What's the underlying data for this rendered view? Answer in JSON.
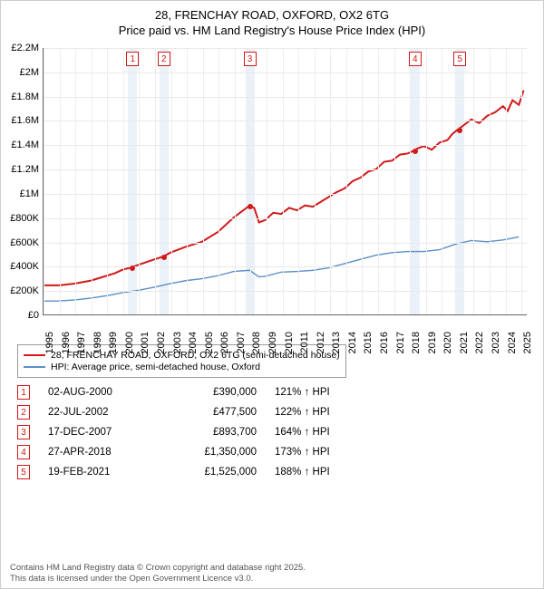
{
  "header": {
    "line1": "28, FRENCHAY ROAD, OXFORD, OX2 6TG",
    "line2": "Price paid vs. HM Land Registry's House Price Index (HPI)"
  },
  "chart": {
    "type": "line",
    "background_color": "#ffffff",
    "grid_color": "#e9e9e9",
    "x_years": [
      1995,
      1996,
      1997,
      1998,
      1999,
      2000,
      2001,
      2002,
      2003,
      2004,
      2005,
      2006,
      2007,
      2008,
      2009,
      2010,
      2011,
      2012,
      2013,
      2014,
      2015,
      2016,
      2017,
      2018,
      2019,
      2020,
      2021,
      2022,
      2023,
      2024,
      2025
    ],
    "xlim": [
      1995,
      2025.5
    ],
    "ylim": [
      0,
      2200000
    ],
    "yticks": [
      0,
      200000,
      400000,
      600000,
      800000,
      1000000,
      1200000,
      1400000,
      1600000,
      1800000,
      2000000,
      2200000
    ],
    "ytick_labels": [
      "£0",
      "£200K",
      "£400K",
      "£600K",
      "£800K",
      "£1M",
      "£1.2M",
      "£1.4M",
      "£1.6M",
      "£1.8M",
      "£2M",
      "£2.2M"
    ],
    "series": [
      {
        "name": "property",
        "label": "28, FRENCHAY ROAD, OXFORD, OX2 6TG (semi-detached house)",
        "color": "#d21919",
        "width": 2,
        "points": [
          [
            1995,
            240000
          ],
          [
            1996,
            240000
          ],
          [
            1997,
            255000
          ],
          [
            1998,
            280000
          ],
          [
            1999,
            320000
          ],
          [
            1999.5,
            340000
          ],
          [
            2000,
            370000
          ],
          [
            2000.6,
            390000
          ],
          [
            2001,
            410000
          ],
          [
            2002,
            455000
          ],
          [
            2002.55,
            477500
          ],
          [
            2003,
            510000
          ],
          [
            2004,
            560000
          ],
          [
            2005,
            600000
          ],
          [
            2006,
            680000
          ],
          [
            2007,
            800000
          ],
          [
            2007.95,
            893700
          ],
          [
            2008.3,
            880000
          ],
          [
            2008.6,
            760000
          ],
          [
            2009,
            780000
          ],
          [
            2009.5,
            840000
          ],
          [
            2010,
            830000
          ],
          [
            2010.5,
            880000
          ],
          [
            2011,
            860000
          ],
          [
            2011.5,
            900000
          ],
          [
            2012,
            890000
          ],
          [
            2012.5,
            930000
          ],
          [
            2013,
            970000
          ],
          [
            2013.5,
            1010000
          ],
          [
            2014,
            1040000
          ],
          [
            2014.5,
            1100000
          ],
          [
            2015,
            1130000
          ],
          [
            2015.5,
            1180000
          ],
          [
            2016,
            1200000
          ],
          [
            2016.5,
            1260000
          ],
          [
            2017,
            1270000
          ],
          [
            2017.5,
            1320000
          ],
          [
            2018,
            1330000
          ],
          [
            2018.32,
            1350000
          ],
          [
            2018.6,
            1370000
          ],
          [
            2019,
            1390000
          ],
          [
            2019.5,
            1360000
          ],
          [
            2020,
            1420000
          ],
          [
            2020.5,
            1440000
          ],
          [
            2020.8,
            1490000
          ],
          [
            2021.13,
            1525000
          ],
          [
            2021.5,
            1560000
          ],
          [
            2022,
            1610000
          ],
          [
            2022.5,
            1580000
          ],
          [
            2023,
            1640000
          ],
          [
            2023.5,
            1670000
          ],
          [
            2024,
            1720000
          ],
          [
            2024.3,
            1680000
          ],
          [
            2024.6,
            1770000
          ],
          [
            2025,
            1730000
          ],
          [
            2025.3,
            1850000
          ]
        ]
      },
      {
        "name": "hpi",
        "label": "HPI: Average price, semi-detached house, Oxford",
        "color": "#5b8fc7",
        "width": 1.4,
        "points": [
          [
            1995,
            110000
          ],
          [
            1996,
            112000
          ],
          [
            1997,
            120000
          ],
          [
            1998,
            135000
          ],
          [
            1999,
            155000
          ],
          [
            2000,
            180000
          ],
          [
            2001,
            200000
          ],
          [
            2002,
            225000
          ],
          [
            2003,
            255000
          ],
          [
            2004,
            280000
          ],
          [
            2005,
            295000
          ],
          [
            2006,
            320000
          ],
          [
            2007,
            355000
          ],
          [
            2008,
            365000
          ],
          [
            2008.6,
            310000
          ],
          [
            2009,
            315000
          ],
          [
            2010,
            350000
          ],
          [
            2011,
            355000
          ],
          [
            2012,
            365000
          ],
          [
            2013,
            385000
          ],
          [
            2014,
            420000
          ],
          [
            2015,
            455000
          ],
          [
            2016,
            490000
          ],
          [
            2017,
            510000
          ],
          [
            2018,
            520000
          ],
          [
            2019,
            520000
          ],
          [
            2020,
            535000
          ],
          [
            2021,
            580000
          ],
          [
            2022,
            610000
          ],
          [
            2023,
            600000
          ],
          [
            2024,
            615000
          ],
          [
            2025,
            640000
          ]
        ]
      }
    ],
    "sale_markers": [
      {
        "n": 1,
        "x": 2000.6,
        "y": 390000
      },
      {
        "n": 2,
        "x": 2002.55,
        "y": 477500
      },
      {
        "n": 3,
        "x": 2007.95,
        "y": 893700
      },
      {
        "n": 4,
        "x": 2018.32,
        "y": 1350000
      },
      {
        "n": 5,
        "x": 2021.13,
        "y": 1525000
      }
    ],
    "marker_band_color": "#d8e6f3",
    "axis_fontsize": 11
  },
  "legend_colors": {
    "property": "#d21919",
    "hpi": "#5b8fc7"
  },
  "sales_table": [
    {
      "n": "1",
      "date": "02-AUG-2000",
      "price": "£390,000",
      "hpi": "121% ↑ HPI"
    },
    {
      "n": "2",
      "date": "22-JUL-2002",
      "price": "£477,500",
      "hpi": "122% ↑ HPI"
    },
    {
      "n": "3",
      "date": "17-DEC-2007",
      "price": "£893,700",
      "hpi": "164% ↑ HPI"
    },
    {
      "n": "4",
      "date": "27-APR-2018",
      "price": "£1,350,000",
      "hpi": "173% ↑ HPI"
    },
    {
      "n": "5",
      "date": "19-FEB-2021",
      "price": "£1,525,000",
      "hpi": "188% ↑ HPI"
    }
  ],
  "footer": {
    "line1": "Contains HM Land Registry data © Crown copyright and database right 2025.",
    "line2": "This data is licensed under the Open Government Licence v3.0."
  }
}
